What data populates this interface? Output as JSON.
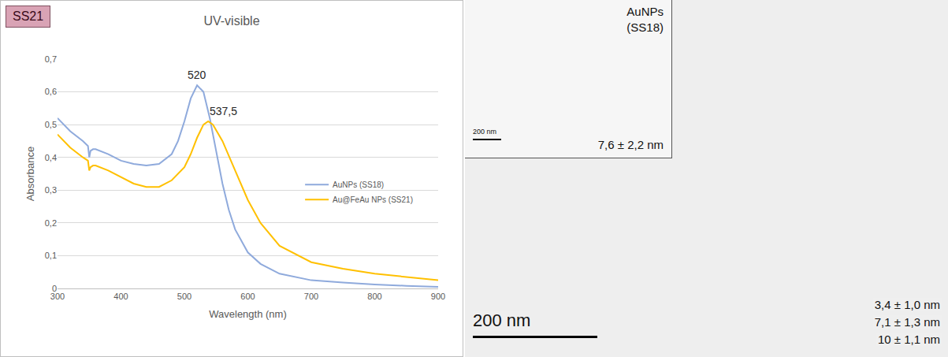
{
  "chart_data": {
    "type": "line",
    "badge": "SS21",
    "title": "UV-visible",
    "x_label": "Wavelength (nm)",
    "y_label": "Absorbance",
    "xlim": [
      300,
      900
    ],
    "xticks": [
      300,
      400,
      500,
      600,
      700,
      800,
      900
    ],
    "ylim": [
      0,
      0.7
    ],
    "yticks": [
      0,
      {
        "value": 0.1,
        "label": "0,1"
      },
      {
        "value": 0.2,
        "label": "0,2"
      },
      {
        "value": 0.3,
        "label": "0,3"
      },
      {
        "value": 0.4,
        "label": "0,4"
      },
      {
        "value": 0.5,
        "label": "0,5"
      },
      {
        "value": 0.6,
        "label": "0,6"
      },
      {
        "value": 0.7,
        "label": "0,7"
      }
    ],
    "grid": true,
    "legend": "right",
    "series": [
      {
        "name": "AuNPs (SS18)",
        "color": "#8faadc",
        "x": [
          300,
          320,
          340,
          348,
          350,
          352,
          356,
          360,
          380,
          400,
          420,
          440,
          460,
          480,
          490,
          500,
          510,
          520,
          530,
          540,
          550,
          560,
          570,
          580,
          600,
          620,
          650,
          700,
          750,
          800,
          850,
          900
        ],
        "values": [
          0.52,
          0.48,
          0.45,
          0.435,
          0.4,
          0.42,
          0.425,
          0.425,
          0.41,
          0.39,
          0.38,
          0.375,
          0.38,
          0.41,
          0.45,
          0.51,
          0.58,
          0.62,
          0.6,
          0.52,
          0.42,
          0.32,
          0.24,
          0.18,
          0.11,
          0.075,
          0.045,
          0.025,
          0.018,
          0.012,
          0.008,
          0.005
        ]
      },
      {
        "name": "Au@FeAu NPs (SS21)",
        "color": "#ffc000",
        "x": [
          300,
          320,
          340,
          348,
          350,
          352,
          356,
          360,
          380,
          400,
          420,
          440,
          460,
          480,
          500,
          510,
          520,
          530,
          537.5,
          545,
          560,
          580,
          600,
          620,
          650,
          700,
          750,
          800,
          850,
          900
        ],
        "values": [
          0.47,
          0.43,
          0.4,
          0.39,
          0.36,
          0.37,
          0.375,
          0.375,
          0.36,
          0.34,
          0.32,
          0.31,
          0.31,
          0.33,
          0.37,
          0.41,
          0.46,
          0.5,
          0.51,
          0.5,
          0.45,
          0.36,
          0.27,
          0.2,
          0.13,
          0.08,
          0.06,
          0.045,
          0.035,
          0.025
        ]
      }
    ],
    "annotations": [
      {
        "x": 520,
        "y": 0.62,
        "text": "520"
      },
      {
        "x": 537.5,
        "y": 0.51,
        "text": "537,5"
      }
    ]
  },
  "micrograph": {
    "inset": {
      "label": [
        "AuNPs",
        "(SS18)"
      ],
      "scale_bar": "200 nm",
      "size": "7,6 ± 2,2 nm"
    },
    "main": {
      "scale_bar": "200 nm",
      "sizes": [
        "3,4 ± 1,0 nm",
        "7,1 ± 1,3 nm",
        "10 ± 1,1 nm"
      ]
    }
  }
}
